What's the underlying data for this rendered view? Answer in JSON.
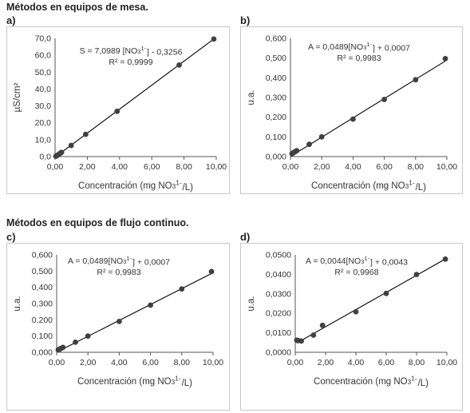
{
  "sections": [
    {
      "title": "Métodos en equipos de mesa."
    },
    {
      "title": "Métodos en equipos de flujo continuo."
    }
  ],
  "chart_data": [
    {
      "panel": "a)",
      "type": "scatter",
      "equation": "S = 7,0989 [NO3 1-] - 0,3256",
      "r2": "R² = 0,9999",
      "xlabel": "Concentración (mg NO3 1-/L)",
      "ylabel": "µS/cm²",
      "xticks": [
        "0,00",
        "2,00",
        "4,00",
        "6,00",
        "8,00",
        "10,00"
      ],
      "yticks": [
        "0,0",
        "10,0",
        "20,0",
        "30,0",
        "40,0",
        "50,0",
        "60,0",
        "70,0"
      ],
      "xlim": [
        0,
        10
      ],
      "ylim": [
        0,
        70
      ],
      "x": [
        0.05,
        0.1,
        0.2,
        0.3,
        0.4,
        1.0,
        1.9,
        3.85,
        7.7,
        9.85
      ],
      "y": [
        0.2,
        0.5,
        1.1,
        1.8,
        2.5,
        6.6,
        13.2,
        26.8,
        54.2,
        69.6
      ],
      "fit": {
        "slope": 7.0989,
        "intercept": -0.3256
      },
      "colors": {
        "marker": "#404040",
        "line": "#000000"
      }
    },
    {
      "panel": "b)",
      "type": "scatter",
      "equation": "A = 0,0489[NO3 1-] + 0,0007",
      "r2": "R² = 0,9983",
      "xlabel": "Concentración (mg NO3 1-/L)",
      "ylabel": "u.a.",
      "xticks": [
        "0,00",
        "2,00",
        "4,00",
        "6,00",
        "8,00",
        "10,00"
      ],
      "yticks": [
        "0,000",
        "0,100",
        "0,200",
        "0,300",
        "0,400",
        "0,500",
        "0,600"
      ],
      "xlim": [
        0,
        10
      ],
      "ylim": [
        0,
        0.6
      ],
      "x": [
        0.1,
        0.2,
        0.3,
        0.4,
        1.2,
        2.0,
        4.0,
        6.0,
        8.0,
        9.9
      ],
      "y": [
        0.015,
        0.02,
        0.025,
        0.03,
        0.062,
        0.1,
        0.19,
        0.29,
        0.39,
        0.497
      ],
      "fit": {
        "slope": 0.0489,
        "intercept": 0.0007
      },
      "colors": {
        "marker": "#404040",
        "line": "#000000"
      }
    },
    {
      "panel": "c)",
      "type": "scatter",
      "equation": "A = 0,0489[NO3 1-] + 0,0007",
      "r2": "R² = 0,9983",
      "xlabel": "Concentración (mg NO3 1-/L)",
      "ylabel": "u.a.",
      "xticks": [
        "0,00",
        "2,00",
        "4,00",
        "6,00",
        "8,00",
        "10,00"
      ],
      "yticks": [
        "0,000",
        "0,100",
        "0,200",
        "0,300",
        "0,400",
        "0,500",
        "0,600"
      ],
      "xlim": [
        0,
        10
      ],
      "ylim": [
        0,
        0.6
      ],
      "x": [
        0.1,
        0.2,
        0.3,
        0.4,
        1.2,
        2.0,
        4.0,
        6.0,
        8.0,
        9.9
      ],
      "y": [
        0.015,
        0.02,
        0.025,
        0.03,
        0.062,
        0.1,
        0.19,
        0.29,
        0.39,
        0.497
      ],
      "fit": {
        "slope": 0.0489,
        "intercept": 0.0007
      },
      "colors": {
        "marker": "#404040",
        "line": "#000000"
      }
    },
    {
      "panel": "d)",
      "type": "scatter",
      "equation": "A = 0,0044[NO3 1-] + 0,0043",
      "r2": "R² = 0,9968",
      "xlabel": "Concentración (mg NO3 1-/L)",
      "ylabel": "u.a.",
      "xticks": [
        "0,00",
        "2,00",
        "4,00",
        "6,00",
        "8,00",
        "10,00"
      ],
      "yticks": [
        "0,0000",
        "0,0100",
        "0,0200",
        "0,0300",
        "0,0400",
        "0,0500"
      ],
      "xlim": [
        0,
        10
      ],
      "ylim": [
        0,
        0.05
      ],
      "x": [
        0.1,
        0.2,
        0.4,
        1.2,
        1.8,
        4.0,
        6.0,
        8.0,
        9.9
      ],
      "y": [
        0.0062,
        0.006,
        0.0058,
        0.0088,
        0.0138,
        0.0208,
        0.0302,
        0.0399,
        0.0478
      ],
      "fit": {
        "slope": 0.0044,
        "intercept": 0.0043
      },
      "colors": {
        "marker": "#404040",
        "line": "#000000"
      }
    }
  ]
}
